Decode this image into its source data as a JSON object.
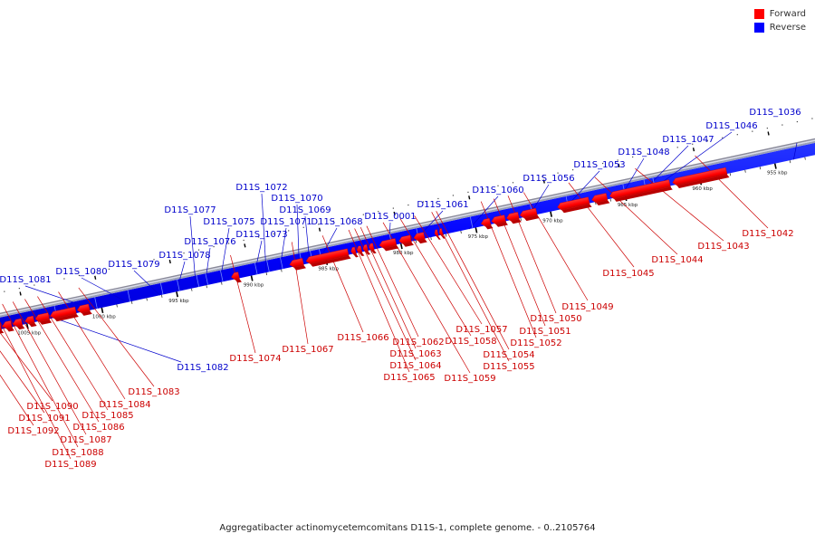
{
  "legend": [
    {
      "label": "Forward",
      "color": "#ff0000"
    },
    {
      "label": "Reverse",
      "color": "#0000ff"
    }
  ],
  "caption": "Aggregatibacter actinomycetemcomitans D11S-1, complete genome. - 0..2105764",
  "colors": {
    "forward": "#ff0000",
    "forward_dark": "#b80000",
    "reverse": "#0000ff",
    "reverse_light": "#4a6cff",
    "backbone": "#888888",
    "label_forward": "#cc0000",
    "label_reverse": "#0000cc"
  },
  "scale": {
    "unit": "kbp",
    "ticks": [
      {
        "kbp": 955,
        "label": "955 kbp"
      },
      {
        "kbp": 960,
        "label": "960 kbp"
      },
      {
        "kbp": 965,
        "label": "965 kbp"
      },
      {
        "kbp": 970,
        "label": "970 kbp"
      },
      {
        "kbp": 975,
        "label": "975 kbp"
      },
      {
        "kbp": 980,
        "label": "980 kbp"
      },
      {
        "kbp": 985,
        "label": "985 kbp"
      },
      {
        "kbp": 990,
        "label": "990 kbp"
      },
      {
        "kbp": 995,
        "label": "995 kbp"
      },
      {
        "kbp": 1000,
        "label": "1000 kbp"
      },
      {
        "kbp": 1005,
        "label": "1005 kbp"
      }
    ]
  },
  "genes_reverse": [
    {
      "label": "D11S_1036",
      "start": 951.5,
      "end": 956.0
    },
    {
      "label": "D11S_1046",
      "start": 963.0,
      "end": 963.5
    },
    {
      "label": "D11S_1047",
      "start": 963.6,
      "end": 964.1
    },
    {
      "label": "D11S_1048",
      "start": 965.0,
      "end": 965.6
    },
    {
      "label": "D11S_1053",
      "start": 968.8,
      "end": 969.3
    },
    {
      "label": "D11S_1056",
      "start": 971.2,
      "end": 971.7
    },
    {
      "label": "D11S_1060",
      "start": 975.2,
      "end": 975.7
    },
    {
      "label": "D11S_1061",
      "start": 978.8,
      "end": 979.3
    },
    {
      "label": "D11S_0001",
      "start": 980.6,
      "end": 981.0
    },
    {
      "label": "D11S_1068",
      "start": 985.3,
      "end": 985.7
    },
    {
      "label": "D11S_1069",
      "start": 985.9,
      "end": 986.3
    },
    {
      "label": "D11S_1070",
      "start": 986.6,
      "end": 987.0
    },
    {
      "label": "D11S_1071",
      "start": 987.9,
      "end": 988.3
    },
    {
      "label": "D11S_1072",
      "start": 988.8,
      "end": 989.2
    },
    {
      "label": "D11S_1073",
      "start": 989.6,
      "end": 990.0
    },
    {
      "label": "D11S_1075",
      "start": 991.9,
      "end": 992.3
    },
    {
      "label": "D11S_1076",
      "start": 992.9,
      "end": 993.3
    },
    {
      "label": "D11S_1077",
      "start": 993.5,
      "end": 993.9
    },
    {
      "label": "D11S_1078",
      "start": 994.8,
      "end": 995.2
    },
    {
      "label": "D11S_1079",
      "start": 995.9,
      "end": 996.3
    },
    {
      "label": "D11S_1080",
      "start": 998.1,
      "end": 998.5
    },
    {
      "label": "D11S_1081",
      "start": 1000.3,
      "end": 1000.7
    },
    {
      "label": "D11S_1082",
      "start": 1003.0,
      "end": 1003.4
    }
  ],
  "genes_forward": [
    {
      "label": "D11S_1042",
      "start": 958.2,
      "end": 961.8
    },
    {
      "label": "D11S_1043",
      "start": 962.0,
      "end": 966.0
    },
    {
      "label": "D11S_1044",
      "start": 966.2,
      "end": 967.2
    },
    {
      "label": "D11S_1045",
      "start": 967.4,
      "end": 969.5
    },
    {
      "label": "D11S_1049",
      "start": 970.9,
      "end": 972.0
    },
    {
      "label": "D11S_1050",
      "start": 972.1,
      "end": 972.9
    },
    {
      "label": "D11S_1051",
      "start": 973.0,
      "end": 973.9
    },
    {
      "label": "D11S_1052",
      "start": 974.0,
      "end": 974.6
    },
    {
      "label": "D11S_1054",
      "start": 977.2,
      "end": 977.4
    },
    {
      "label": "D11S_1055",
      "start": 977.5,
      "end": 977.7
    },
    {
      "label": "D11S_1057",
      "start": 978.4,
      "end": 979.1
    },
    {
      "label": "D11S_1058",
      "start": 979.3,
      "end": 980.1
    },
    {
      "label": "D11S_1059",
      "start": 980.3,
      "end": 981.4
    },
    {
      "label": "D11S_1062",
      "start": 981.8,
      "end": 982.1
    },
    {
      "label": "D11S_1063",
      "start": 982.2,
      "end": 982.5
    },
    {
      "label": "D11S_1064",
      "start": 982.6,
      "end": 982.9
    },
    {
      "label": "D11S_1065",
      "start": 983.0,
      "end": 983.3
    },
    {
      "label": "D11S_1066",
      "start": 983.5,
      "end": 986.3
    },
    {
      "label": "D11S_1067",
      "start": 986.5,
      "end": 987.4
    },
    {
      "label": "D11S_1074",
      "start": 990.8,
      "end": 991.3
    },
    {
      "label": "D11S_1083",
      "start": 1000.8,
      "end": 1001.6
    },
    {
      "label": "D11S_1084",
      "start": 1001.7,
      "end": 1003.4
    },
    {
      "label": "D11S_1085",
      "start": 1003.5,
      "end": 1004.4
    },
    {
      "label": "D11S_1086",
      "start": 1004.5,
      "end": 1005.1
    },
    {
      "label": "D11S_1087",
      "start": 1005.3,
      "end": 1005.9
    },
    {
      "label": "D11S_1088",
      "start": 1006.0,
      "end": 1006.6
    },
    {
      "label": "D11S_1089",
      "start": 1006.7,
      "end": 1007.3
    },
    {
      "label": "D11S_1090",
      "start": 1007.4,
      "end": 1008.0
    },
    {
      "label": "D11S_1091",
      "start": 1008.1,
      "end": 1008.7
    },
    {
      "label": "D11S_1092",
      "start": 1008.8,
      "end": 1009.6
    }
  ]
}
